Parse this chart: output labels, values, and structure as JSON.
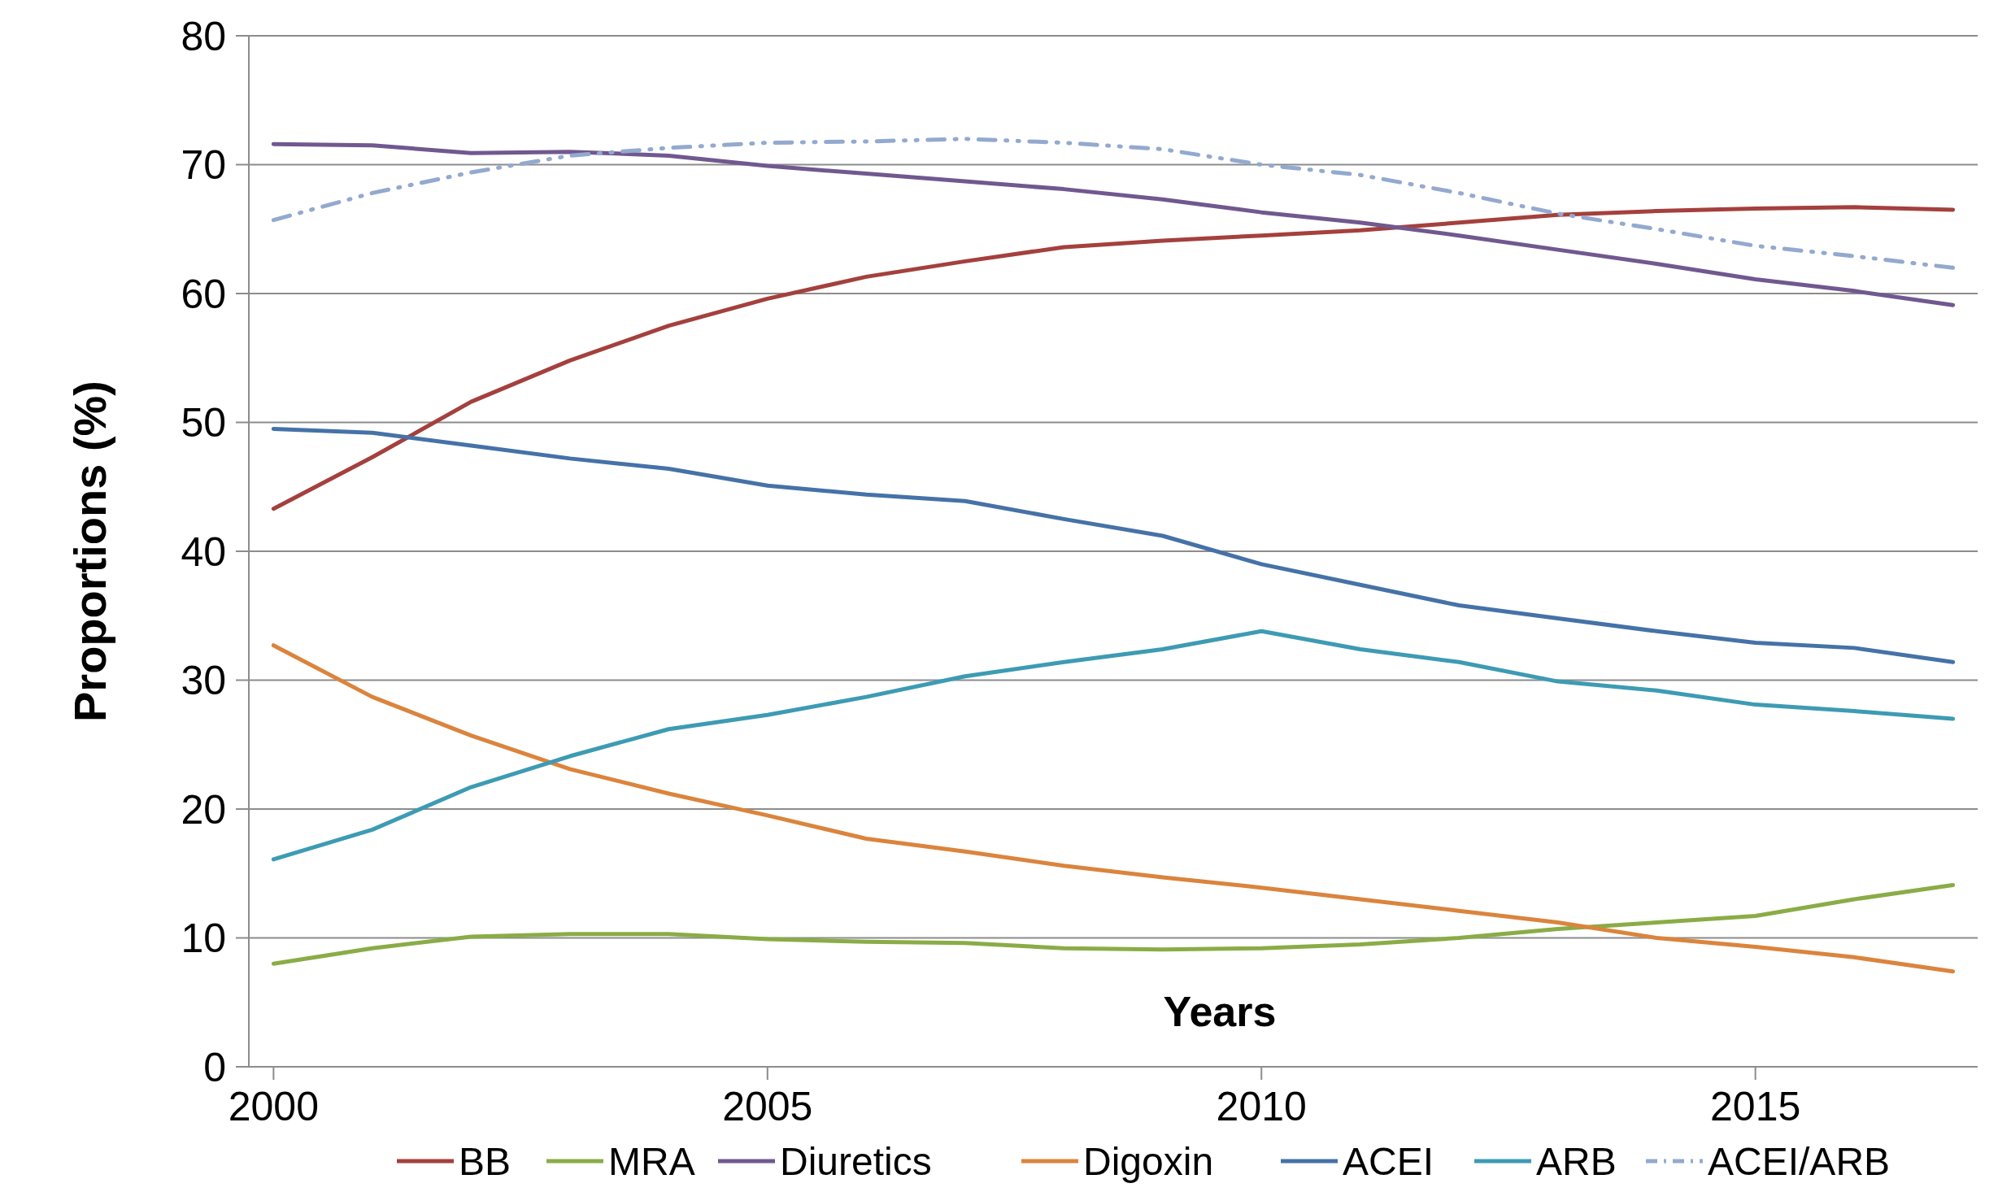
{
  "chart_data": {
    "type": "line",
    "xlabel": "Years",
    "ylabel": "Proportions (%)",
    "x": [
      2000,
      2001,
      2002,
      2003,
      2004,
      2005,
      2006,
      2007,
      2008,
      2009,
      2010,
      2011,
      2012,
      2013,
      2014,
      2015,
      2016,
      2017
    ],
    "xlim": [
      1999.75,
      2017.25
    ],
    "xticks": [
      2000,
      2005,
      2010,
      2015
    ],
    "ylim": [
      0,
      80
    ],
    "yticks": [
      0,
      10,
      20,
      30,
      40,
      50,
      60,
      70,
      80
    ],
    "grid": "y",
    "legend": "bottom",
    "marker": "none",
    "series": [
      {
        "name": "BB",
        "color": "#a4403d",
        "line_style": "solid",
        "values": [
          43.3,
          47.3,
          51.6,
          54.8,
          57.5,
          59.6,
          61.3,
          62.5,
          63.6,
          64.1,
          64.5,
          64.9,
          65.5,
          66.1,
          66.4,
          66.6,
          66.7,
          66.5
        ]
      },
      {
        "name": "MRA",
        "color": "#8aac46",
        "line_style": "solid",
        "values": [
          8.0,
          9.2,
          10.1,
          10.3,
          10.3,
          9.9,
          9.7,
          9.6,
          9.2,
          9.1,
          9.2,
          9.5,
          10.0,
          10.7,
          11.2,
          11.7,
          13.0,
          14.1
        ]
      },
      {
        "name": "Diuretics",
        "color": "#71588f",
        "line_style": "solid",
        "values": [
          71.6,
          71.5,
          70.9,
          71.0,
          70.7,
          69.9,
          69.3,
          68.7,
          68.1,
          67.3,
          66.3,
          65.5,
          64.5,
          63.4,
          62.3,
          61.1,
          60.2,
          59.1
        ]
      },
      {
        "name": "Digoxin",
        "color": "#db843d",
        "line_style": "solid",
        "values": [
          32.7,
          28.7,
          25.7,
          23.1,
          21.2,
          19.5,
          17.7,
          16.7,
          15.6,
          14.7,
          13.9,
          13.0,
          12.1,
          11.2,
          10.0,
          9.3,
          8.5,
          7.4
        ]
      },
      {
        "name": "ACEI",
        "color": "#4572a7",
        "line_style": "solid",
        "values": [
          49.5,
          49.2,
          48.2,
          47.2,
          46.4,
          45.1,
          44.4,
          43.9,
          42.5,
          41.2,
          39.0,
          37.4,
          35.8,
          34.8,
          33.8,
          32.9,
          32.5,
          31.4
        ]
      },
      {
        "name": "ARB",
        "color": "#3d9bb3",
        "line_style": "solid",
        "values": [
          16.1,
          18.4,
          21.7,
          24.1,
          26.2,
          27.3,
          28.7,
          30.3,
          31.4,
          32.4,
          33.8,
          32.4,
          31.4,
          29.9,
          29.2,
          28.1,
          27.6,
          27.0
        ]
      },
      {
        "name": "ACEI/ARB",
        "color": "#93a9cf",
        "line_style": "dashed",
        "values": [
          65.7,
          67.8,
          69.4,
          70.7,
          71.3,
          71.7,
          71.8,
          72.0,
          71.7,
          71.2,
          70.0,
          69.2,
          67.8,
          66.2,
          65.0,
          63.7,
          62.9,
          62.0
        ]
      }
    ]
  }
}
